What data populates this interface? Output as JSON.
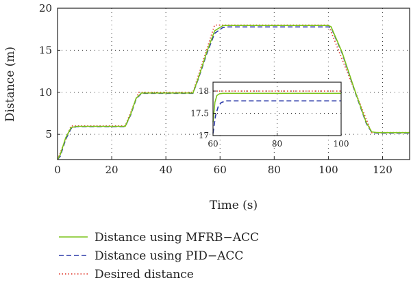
{
  "chart_data": [
    {
      "type": "line",
      "title": "",
      "xlabel": "Time (s)",
      "ylabel": "Distance (m)",
      "xlim": [
        0,
        130
      ],
      "ylim": [
        2,
        20
      ],
      "xticks": [
        0,
        20,
        40,
        60,
        80,
        100,
        120
      ],
      "yticks": [
        5,
        10,
        15,
        20
      ],
      "grid": "dotted",
      "legend": "bottom, below plot",
      "series": [
        {
          "name": "Distance using MFRB−ACC",
          "color": "#7cc41a",
          "style": "solid",
          "x": [
            0,
            1,
            3,
            5,
            7,
            25,
            27,
            29,
            31,
            50,
            52,
            55,
            58,
            61,
            62,
            100,
            101,
            105,
            110,
            114,
            116,
            118,
            130
          ],
          "y": [
            2,
            2.6,
            4.6,
            5.8,
            5.95,
            5.95,
            7.4,
            9.3,
            9.92,
            9.92,
            11.7,
            14.7,
            17.3,
            17.92,
            17.95,
            17.95,
            17.8,
            14.8,
            10.0,
            6.4,
            5.3,
            5.2,
            5.2
          ]
        },
        {
          "name": "Distance using PID−ACC",
          "color": "#2b3aa8",
          "style": "dashed",
          "x": [
            0,
            1,
            3,
            5,
            7,
            25,
            27,
            29,
            31,
            50,
            52,
            55,
            58,
            61,
            63,
            100,
            101,
            105,
            110,
            114,
            116,
            118,
            130
          ],
          "y": [
            2,
            2.4,
            4.4,
            5.7,
            5.92,
            5.92,
            7.3,
            9.2,
            9.88,
            9.88,
            11.6,
            14.5,
            17.0,
            17.7,
            17.78,
            17.78,
            17.7,
            14.7,
            9.9,
            6.3,
            5.25,
            5.15,
            5.15
          ]
        },
        {
          "name": "Desired distance",
          "color": "#e2453a",
          "style": "dotted",
          "x": [
            0,
            5,
            25,
            30,
            50,
            58,
            100,
            116,
            130
          ],
          "y": [
            2,
            6,
            6,
            10,
            10,
            18,
            18,
            5.2,
            5.2
          ]
        }
      ]
    },
    {
      "type": "line",
      "title": "",
      "inset_of": 0,
      "xlim": [
        60,
        100
      ],
      "ylim": [
        17,
        18.2
      ],
      "xticks": [
        60,
        80,
        100
      ],
      "yticks": [
        17,
        17.5,
        18
      ],
      "ytick_labels": [
        "17",
        "17.5",
        "18"
      ],
      "grid": "dotted",
      "series": [
        {
          "name": "Distance using MFRB−ACC",
          "color": "#7cc41a",
          "style": "solid",
          "x": [
            60,
            60.6,
            61.2,
            62,
            63,
            100
          ],
          "y": [
            17.3,
            17.75,
            17.9,
            17.94,
            17.95,
            17.95
          ]
        },
        {
          "name": "Distance using PID−ACC",
          "color": "#2b3aa8",
          "style": "dashed",
          "x": [
            60,
            60.8,
            61.6,
            62.5,
            64,
            100
          ],
          "y": [
            17.05,
            17.45,
            17.65,
            17.74,
            17.78,
            17.78
          ]
        },
        {
          "name": "Desired distance",
          "color": "#e2453a",
          "style": "dotted",
          "x": [
            60,
            100
          ],
          "y": [
            18,
            18
          ]
        }
      ]
    }
  ]
}
